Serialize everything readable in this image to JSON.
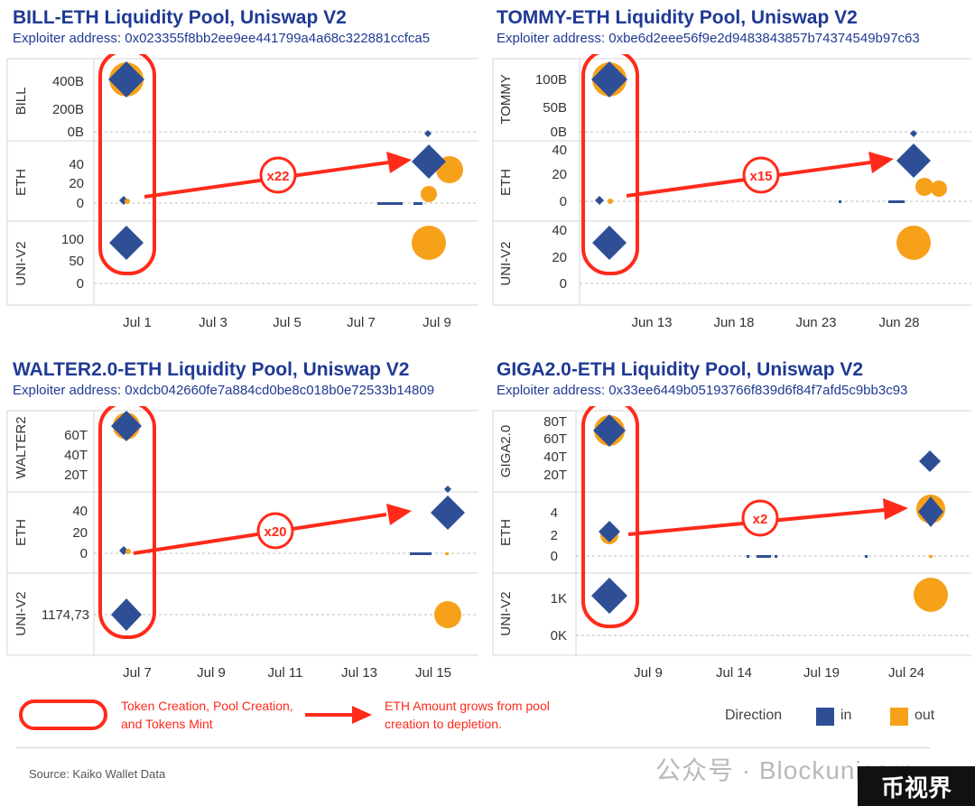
{
  "chart_data": [
    {
      "type": "scatter",
      "title": "BILL-ETH Liquidity Pool, Uniswap V2",
      "subtitle": "Exploiter address: 0x023355f8bb2ee9ee441799a4a68c322881ccfca5",
      "x_ticks": [
        "Jul 1",
        "Jul 3",
        "Jul 5",
        "Jul 7",
        "Jul 9"
      ],
      "panels": [
        {
          "label": "BILL",
          "ticks": [
            "400B",
            "200B",
            "0B"
          ],
          "points": [
            {
              "t": 0,
              "dir": "out",
              "size": "large"
            },
            {
              "t": 0,
              "dir": "in",
              "size": "large"
            },
            {
              "t": 8,
              "dir": "in",
              "size": "tiny"
            }
          ]
        },
        {
          "label": "ETH",
          "ticks": [
            "40",
            "20",
            "0"
          ],
          "points": [
            {
              "t": 0,
              "dir": "in",
              "size": "tiny"
            },
            {
              "t": 0,
              "dir": "out",
              "size": "tiny"
            },
            {
              "t": 8,
              "dir": "out",
              "size": "large"
            },
            {
              "t": 8,
              "dir": "in",
              "size": "large"
            },
            {
              "t": 8,
              "dir": "out",
              "size": "medium"
            }
          ]
        },
        {
          "label": "UNI-V2",
          "ticks": [
            "100",
            "50",
            "0"
          ],
          "points": [
            {
              "t": 0,
              "dir": "in",
              "size": "large"
            },
            {
              "t": 8,
              "dir": "out",
              "size": "large"
            }
          ]
        }
      ],
      "annotation": "x22"
    },
    {
      "type": "scatter",
      "title": "TOMMY-ETH Liquidity Pool, Uniswap V2",
      "subtitle": "Exploiter address: 0xbe6d2eee56f9e2d9483843857b74374549b97c63",
      "x_ticks": [
        "Jun 13",
        "Jun 18",
        "Jun 23",
        "Jun 28"
      ],
      "panels": [
        {
          "label": "TOMMY",
          "ticks": [
            "100B",
            "50B",
            "0B"
          ],
          "points": [
            {
              "t": 0,
              "dir": "out",
              "size": "large"
            },
            {
              "t": 0,
              "dir": "in",
              "size": "large"
            },
            {
              "t": 10,
              "dir": "in",
              "size": "tiny"
            }
          ]
        },
        {
          "label": "ETH",
          "ticks": [
            "40",
            "20",
            "0"
          ],
          "points": [
            {
              "t": 0,
              "dir": "in",
              "size": "tiny"
            },
            {
              "t": 0,
              "dir": "out",
              "size": "tiny"
            },
            {
              "t": 10,
              "dir": "in",
              "size": "large"
            },
            {
              "t": 10,
              "dir": "out",
              "size": "medium"
            }
          ]
        },
        {
          "label": "UNI-V2",
          "ticks": [
            "40",
            "20",
            "0"
          ],
          "points": [
            {
              "t": 0,
              "dir": "in",
              "size": "large"
            },
            {
              "t": 10,
              "dir": "out",
              "size": "large"
            }
          ]
        }
      ],
      "annotation": "x15"
    },
    {
      "type": "scatter",
      "title": "WALTER2.0-ETH Liquidity Pool, Uniswap V2",
      "subtitle": "Exploiter address: 0xdcb042660fe7a884cd0be8c018b0e72533b14809",
      "x_ticks": [
        "Jul 7",
        "Jul 9",
        "Jul 11",
        "Jul 13",
        "Jul 15"
      ],
      "panels": [
        {
          "label": "WALTER2",
          "ticks": [
            "60T",
            "40T",
            "20T"
          ],
          "points": [
            {
              "t": 0,
              "dir": "out",
              "size": "large"
            },
            {
              "t": 0,
              "dir": "in",
              "size": "large"
            }
          ]
        },
        {
          "label": "ETH",
          "ticks": [
            "40",
            "20",
            "0"
          ],
          "points": [
            {
              "t": 0,
              "dir": "in",
              "size": "tiny"
            },
            {
              "t": 0,
              "dir": "out",
              "size": "tiny"
            },
            {
              "t": 8,
              "dir": "in",
              "size": "large"
            },
            {
              "t": 8,
              "dir": "in",
              "size": "tiny"
            }
          ]
        },
        {
          "label": "UNI-V2",
          "ticks": [
            "1174,73"
          ],
          "points": [
            {
              "t": 0,
              "dir": "in",
              "size": "large"
            },
            {
              "t": 8,
              "dir": "out",
              "size": "large"
            }
          ]
        }
      ],
      "annotation": "x20"
    },
    {
      "type": "scatter",
      "title": "GIGA2.0-ETH Liquidity Pool, Uniswap V2",
      "subtitle": "Exploiter address: 0x33ee6449b05193766f839d6f84f7afd5c9bb3c93",
      "x_ticks": [
        "Jul 9",
        "Jul 14",
        "Jul 19",
        "Jul 24"
      ],
      "panels": [
        {
          "label": "GIGA2.0",
          "ticks": [
            "80T",
            "60T",
            "40T",
            "20T"
          ],
          "points": [
            {
              "t": 0,
              "dir": "out",
              "size": "large"
            },
            {
              "t": 0,
              "dir": "in",
              "size": "large"
            },
            {
              "t": 10,
              "dir": "in",
              "size": "medium"
            }
          ]
        },
        {
          "label": "ETH",
          "ticks": [
            "4",
            "2",
            "0"
          ],
          "points": [
            {
              "t": 0,
              "dir": "out",
              "size": "medium"
            },
            {
              "t": 0,
              "dir": "in",
              "size": "medium"
            },
            {
              "t": 10,
              "dir": "out",
              "size": "large"
            },
            {
              "t": 10,
              "dir": "in",
              "size": "large"
            }
          ]
        },
        {
          "label": "UNI-V2",
          "ticks": [
            "1K",
            "0K"
          ],
          "points": [
            {
              "t": 0,
              "dir": "in",
              "size": "large"
            },
            {
              "t": 10,
              "dir": "out",
              "size": "large"
            }
          ]
        }
      ],
      "annotation": "x2"
    }
  ],
  "legend": {
    "oval_text": "Token Creation, Pool Creation, and Tokens Mint",
    "arrow_text": "ETH Amount grows from pool creation to depletion.",
    "direction_label": "Direction",
    "in_label": "in",
    "out_label": "out"
  },
  "colors": {
    "in": "#2e4f96",
    "out": "#f7a11a",
    "red": "#ff2a1a",
    "title": "#1f3a93"
  },
  "source": "Source: Kaiko Wallet Data",
  "watermark": "公众号 · Blockunicorn",
  "badge": "币视界"
}
